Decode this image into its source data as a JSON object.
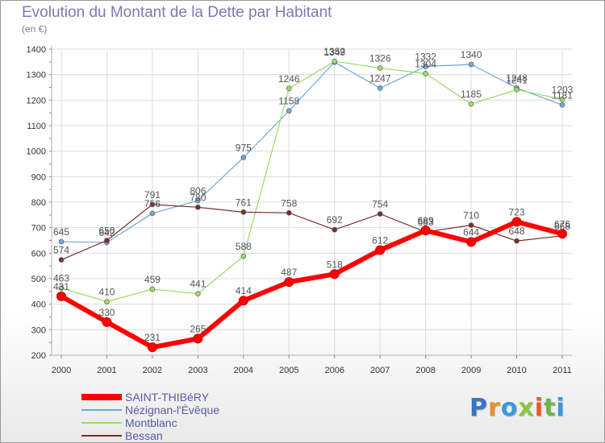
{
  "header": {
    "title": "Evolution du Montant de la Dette par Habitant",
    "subtitle": "(en €)"
  },
  "logo": {
    "text": "Proxiti",
    "letter_colors": [
      "#3a74c4",
      "#e8902c",
      "#3a9ad8",
      "#8cc63f",
      "#e85a2c",
      "#6ab84a",
      "#3a9ad8"
    ]
  },
  "colors": {
    "axis": "#b0b0b0",
    "grid": "#dcdcdc",
    "tick_text": "#333333",
    "label_text": "#555555"
  },
  "chart_data": {
    "type": "line",
    "title": "Evolution du Montant de la Dette par Habitant",
    "subtitle": "(en €)",
    "x": [
      2000,
      2001,
      2002,
      2003,
      2004,
      2005,
      2006,
      2007,
      2008,
      2009,
      2010,
      2011
    ],
    "ylim": [
      200,
      1400
    ],
    "yticks": [
      200,
      300,
      400,
      500,
      600,
      700,
      800,
      900,
      1000,
      1100,
      1200,
      1300,
      1400
    ],
    "grid": true,
    "legend_position": "bottom-left",
    "series": [
      {
        "name": "SAINT-THIBéRY",
        "color": "#ff0000",
        "line_width": 6,
        "values": [
          431,
          330,
          231,
          265,
          414,
          487,
          518,
          612,
          689,
          644,
          723,
          676
        ]
      },
      {
        "name": "Nézignan-l'Évêque",
        "color": "#6fa8dc",
        "line_width": 1.2,
        "values": [
          645,
          642,
          756,
          806,
          975,
          1158,
          1349,
          1247,
          1332,
          1340,
          1248,
          1181
        ]
      },
      {
        "name": "Montblanc",
        "color": "#99dd66",
        "line_width": 1.2,
        "values": [
          463,
          410,
          459,
          441,
          588,
          1246,
          1352,
          1326,
          1304,
          1185,
          1241,
          1203
        ]
      },
      {
        "name": "Bessan",
        "color": "#7a2e2e",
        "line_width": 1.2,
        "values": [
          574,
          650,
          791,
          780,
          761,
          758,
          692,
          754,
          683,
          710,
          648,
          668
        ]
      }
    ]
  }
}
